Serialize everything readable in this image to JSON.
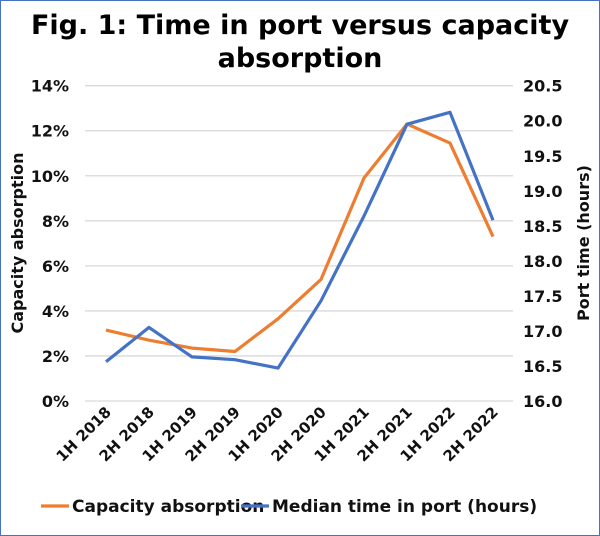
{
  "chart_data": {
    "type": "line",
    "title_line1": "Fig. 1: Time in port versus capacity",
    "title_line2": "absorption",
    "categories": [
      "1H 2018",
      "2H 2018",
      "1H 2019",
      "2H 2019",
      "1H 2020",
      "2H 2020",
      "1H 2021",
      "2H 2021",
      "1H 2022",
      "2H 2022"
    ],
    "ylabel_left": "Capacity absorption",
    "ylabel_right": "Port time (hours)",
    "ylim_left": [
      0,
      14
    ],
    "ylim_right": [
      16.0,
      20.5
    ],
    "yticks_left": [
      "0%",
      "2%",
      "4%",
      "6%",
      "8%",
      "10%",
      "12%",
      "14%"
    ],
    "yticks_right": [
      "16.0",
      "16.5",
      "17.0",
      "17.5",
      "18.0",
      "18.5",
      "19.0",
      "19.5",
      "20.0",
      "20.5"
    ],
    "grid": true,
    "legend_position": "bottom",
    "series": [
      {
        "name": "Capacity absorption",
        "axis": "left",
        "color": "#ed7d31",
        "values": [
          3.15,
          2.7,
          2.35,
          2.2,
          3.65,
          5.4,
          9.9,
          12.3,
          11.45,
          7.3
        ]
      },
      {
        "name": "Median time in port (hours)",
        "axis": "right",
        "color": "#4472c4",
        "values": [
          16.56,
          17.05,
          16.63,
          16.59,
          16.47,
          17.43,
          18.64,
          19.95,
          20.12,
          18.58
        ]
      }
    ]
  }
}
